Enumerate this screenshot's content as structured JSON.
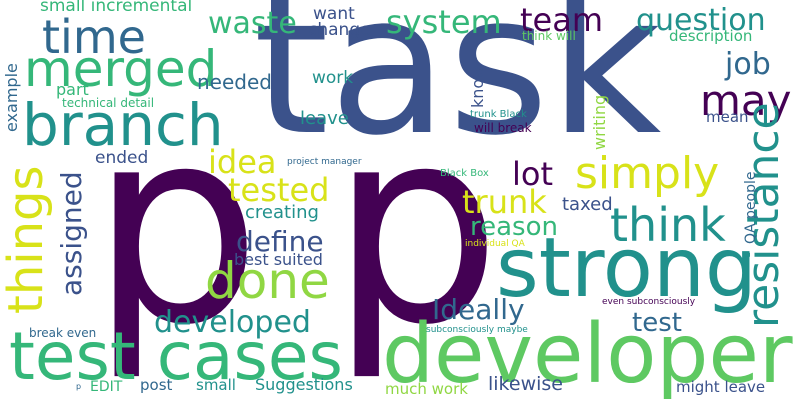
{
  "palette": {
    "dark_purple": "#440154",
    "indigo": "#3b528b",
    "blue": "#31688e",
    "teal": "#21918c",
    "green": "#35b779",
    "light_green": "#5ec962",
    "lime": "#90d743",
    "yellow": "#d8e219",
    "background": "#ffffff"
  },
  "words": [
    {
      "text": "task",
      "color": "#3b528b",
      "orientation": "horizontal"
    },
    {
      "text": "p",
      "color": "#440154",
      "orientation": "horizontal"
    },
    {
      "text": "p",
      "color": "#440154",
      "orientation": "horizontal"
    },
    {
      "text": "strong",
      "color": "#21918c",
      "orientation": "horizontal"
    },
    {
      "text": "developer",
      "color": "#5ec962",
      "orientation": "horizontal"
    },
    {
      "text": "test cases",
      "color": "#35b779",
      "orientation": "horizontal"
    },
    {
      "text": "branch",
      "color": "#21918c",
      "orientation": "horizontal"
    },
    {
      "text": "merged",
      "color": "#35b779",
      "orientation": "horizontal"
    },
    {
      "text": "time",
      "color": "#31688e",
      "orientation": "horizontal"
    },
    {
      "text": "waste",
      "color": "#35b779",
      "orientation": "horizontal"
    },
    {
      "text": "system",
      "color": "#35b779",
      "orientation": "horizontal"
    },
    {
      "text": "team",
      "color": "#440154",
      "orientation": "horizontal"
    },
    {
      "text": "question",
      "color": "#21918c",
      "orientation": "horizontal"
    },
    {
      "text": "job",
      "color": "#31688e",
      "orientation": "horizontal"
    },
    {
      "text": "may",
      "color": "#440154",
      "orientation": "horizontal"
    },
    {
      "text": "simply",
      "color": "#d8e219",
      "orientation": "horizontal"
    },
    {
      "text": "think",
      "color": "#21918c",
      "orientation": "horizontal"
    },
    {
      "text": "done",
      "color": "#90d743",
      "orientation": "horizontal"
    },
    {
      "text": "things",
      "color": "#d8e219",
      "orientation": "vertical"
    },
    {
      "text": "resistance",
      "color": "#21918c",
      "orientation": "vertical"
    },
    {
      "text": "idea",
      "color": "#d8e219",
      "orientation": "horizontal"
    },
    {
      "text": "tested",
      "color": "#d8e219",
      "orientation": "horizontal"
    },
    {
      "text": "lot",
      "color": "#440154",
      "orientation": "horizontal"
    },
    {
      "text": "trunk",
      "color": "#d8e219",
      "orientation": "horizontal"
    },
    {
      "text": "reason",
      "color": "#35b779",
      "orientation": "horizontal"
    },
    {
      "text": "define",
      "color": "#3b528b",
      "orientation": "horizontal"
    },
    {
      "text": "developed",
      "color": "#21918c",
      "orientation": "horizontal"
    },
    {
      "text": "Ideally",
      "color": "#31688e",
      "orientation": "horizontal"
    },
    {
      "text": "test",
      "color": "#31688e",
      "orientation": "horizontal"
    },
    {
      "text": "assigned",
      "color": "#3b528b",
      "orientation": "vertical"
    },
    {
      "text": "small incremental",
      "color": "#35b779",
      "orientation": "horizontal"
    },
    {
      "text": "want",
      "color": "#3b528b",
      "orientation": "horizontal"
    },
    {
      "text": "change",
      "color": "#3b528b",
      "orientation": "horizontal"
    },
    {
      "text": "work",
      "color": "#21918c",
      "orientation": "horizontal"
    },
    {
      "text": "leave",
      "color": "#21918c",
      "orientation": "horizontal"
    },
    {
      "text": "needed",
      "color": "#31688e",
      "orientation": "horizontal"
    },
    {
      "text": "part",
      "color": "#35b779",
      "orientation": "horizontal"
    },
    {
      "text": "technical detail",
      "color": "#35b779",
      "orientation": "horizontal"
    },
    {
      "text": "example",
      "color": "#31688e",
      "orientation": "vertical"
    },
    {
      "text": "ended",
      "color": "#3b528b",
      "orientation": "horizontal"
    },
    {
      "text": "creating",
      "color": "#21918c",
      "orientation": "horizontal"
    },
    {
      "text": "best suited",
      "color": "#3b528b",
      "orientation": "horizontal"
    },
    {
      "text": "taxed",
      "color": "#3b528b",
      "orientation": "horizontal"
    },
    {
      "text": "know",
      "color": "#3b528b",
      "orientation": "vertical"
    },
    {
      "text": "think will",
      "color": "#5ec962",
      "orientation": "horizontal"
    },
    {
      "text": "description",
      "color": "#35b779",
      "orientation": "horizontal"
    },
    {
      "text": "trunk Black",
      "color": "#21918c",
      "orientation": "horizontal"
    },
    {
      "text": "will break",
      "color": "#440154",
      "orientation": "horizontal"
    },
    {
      "text": "writing",
      "color": "#90d743",
      "orientation": "vertical"
    },
    {
      "text": "mean",
      "color": "#3b528b",
      "orientation": "horizontal"
    },
    {
      "text": "QA people",
      "color": "#31688e",
      "orientation": "vertical"
    },
    {
      "text": "project manager",
      "color": "#31688e",
      "orientation": "horizontal"
    },
    {
      "text": "Black Box",
      "color": "#35b779",
      "orientation": "horizontal"
    },
    {
      "text": "individual QA",
      "color": "#d8e219",
      "orientation": "horizontal"
    },
    {
      "text": "even subconsciously",
      "color": "#440154",
      "orientation": "horizontal"
    },
    {
      "text": "subconsciously maybe",
      "color": "#21918c",
      "orientation": "horizontal"
    },
    {
      "text": "break even",
      "color": "#31688e",
      "orientation": "horizontal"
    },
    {
      "text": "EDIT",
      "color": "#35b779",
      "orientation": "horizontal"
    },
    {
      "text": "post",
      "color": "#31688e",
      "orientation": "horizontal"
    },
    {
      "text": "small",
      "color": "#21918c",
      "orientation": "horizontal"
    },
    {
      "text": "Suggestions",
      "color": "#21918c",
      "orientation": "horizontal"
    },
    {
      "text": "much work",
      "color": "#90d743",
      "orientation": "horizontal"
    },
    {
      "text": "likewise",
      "color": "#3b528b",
      "orientation": "horizontal"
    },
    {
      "text": "might leave",
      "color": "#3b528b",
      "orientation": "horizontal"
    },
    {
      "text": "p",
      "color": "#31688e",
      "orientation": "horizontal"
    }
  ]
}
